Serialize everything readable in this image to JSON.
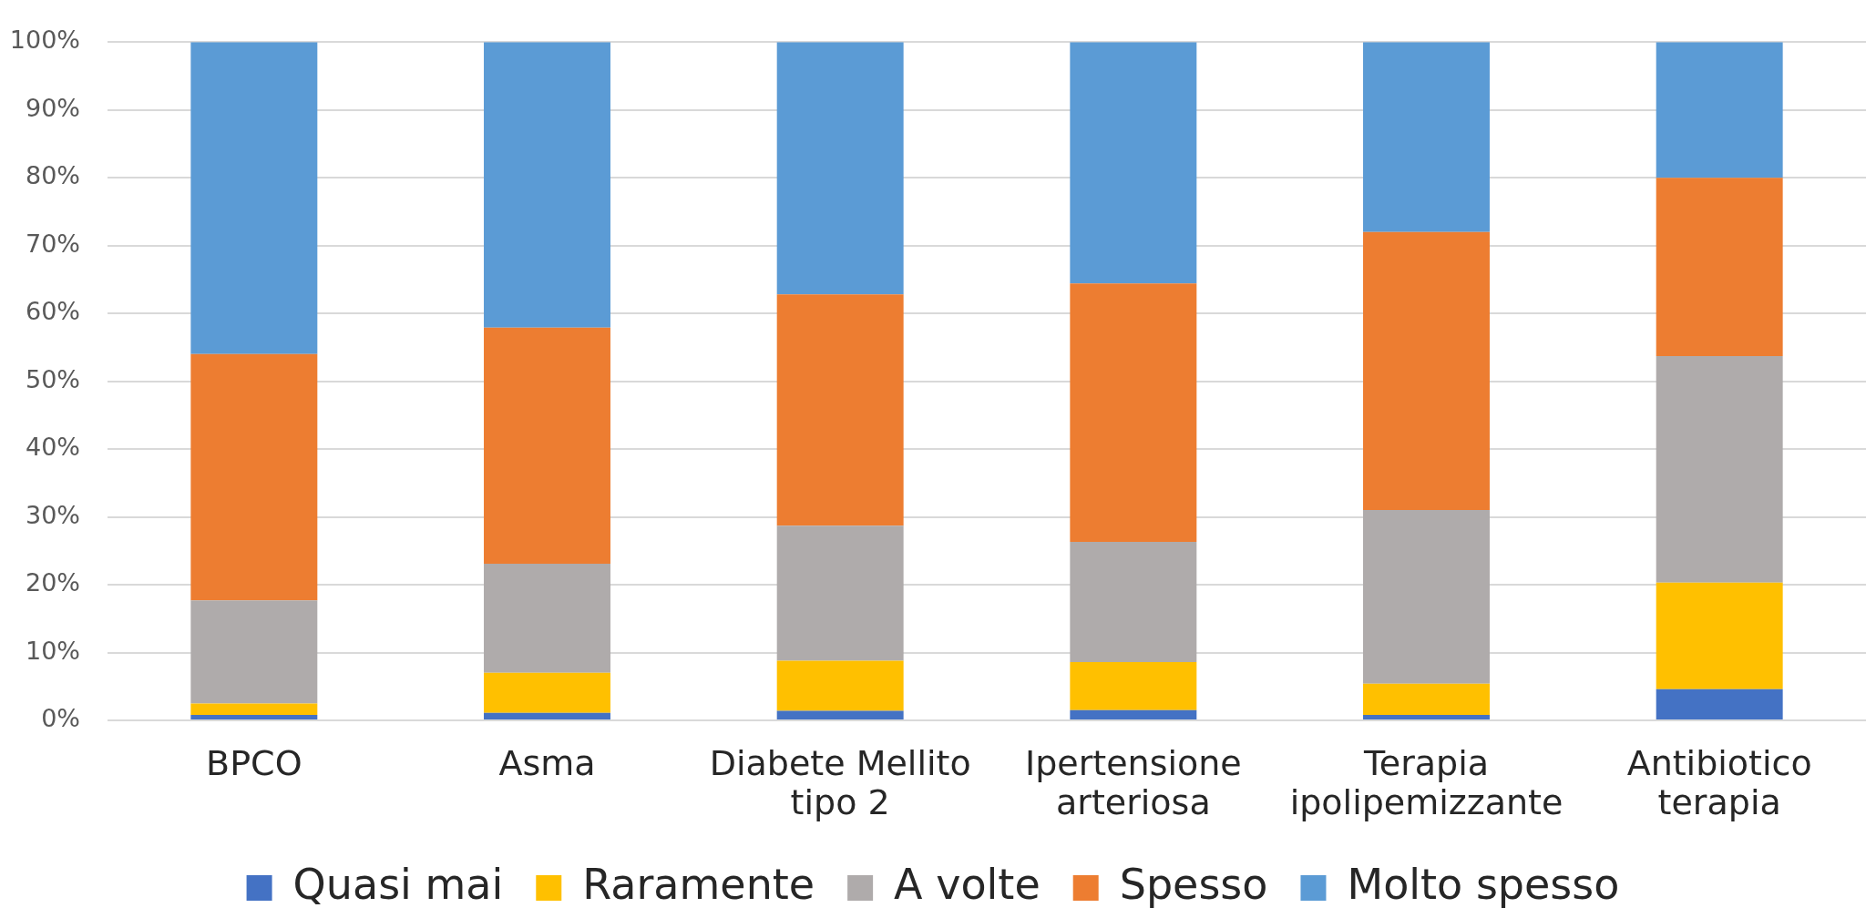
{
  "chart_data": {
    "type": "bar",
    "stacked": true,
    "categories": [
      "BPCO",
      "Asma",
      "Diabete Mellito tipo 2",
      "Ipertensione arteriosa",
      "Terapia ipolipemizzante",
      "Antibiotico terapia"
    ],
    "series": [
      {
        "name": "Quasi mai",
        "color": "#4472c4",
        "values": [
          0.8,
          1.1,
          1.4,
          1.5,
          0.8,
          4.6
        ]
      },
      {
        "name": "Raramente",
        "color": "#ffc000",
        "values": [
          1.7,
          5.9,
          7.4,
          7.1,
          4.6,
          15.7
        ]
      },
      {
        "name": "A volte",
        "color": "#afabab",
        "values": [
          15.2,
          16.1,
          19.9,
          17.7,
          25.6,
          33.4
        ]
      },
      {
        "name": "Spesso",
        "color": "#ed7d31",
        "values": [
          36.3,
          34.8,
          34.1,
          38.1,
          41.0,
          26.3
        ]
      },
      {
        "name": "Molto spesso",
        "color": "#5b9bd5",
        "values": [
          46.0,
          42.1,
          37.2,
          35.6,
          28.0,
          20.0
        ]
      }
    ],
    "ylim": [
      0,
      100
    ],
    "yticks": [
      {
        "value": 0,
        "label": "0%"
      },
      {
        "value": 10,
        "label": "10%"
      },
      {
        "value": 20,
        "label": "20%"
      },
      {
        "value": 30,
        "label": "30%"
      },
      {
        "value": 40,
        "label": "40%"
      },
      {
        "value": 50,
        "label": "50%"
      },
      {
        "value": 60,
        "label": "60%"
      },
      {
        "value": 70,
        "label": "70%"
      },
      {
        "value": 80,
        "label": "80%"
      },
      {
        "value": 90,
        "label": "90%"
      },
      {
        "value": 100,
        "label": "100%"
      }
    ],
    "grid": "y",
    "legend": "bottom"
  }
}
